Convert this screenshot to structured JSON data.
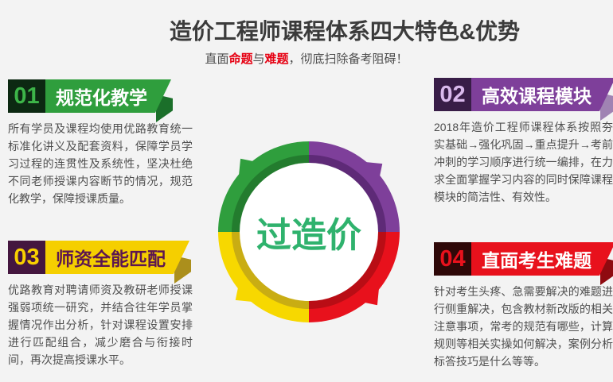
{
  "page": {
    "background": "#f3f3f3"
  },
  "header": {
    "title": "造价工程师课程体系四大特色&优势",
    "title_color": "#3b3b3b",
    "emphasis_color": "#e60012",
    "subtitle_parts": [
      {
        "text": "直面",
        "emphasis": false
      },
      {
        "text": "命题",
        "emphasis": true
      },
      {
        "text": "与",
        "emphasis": false
      },
      {
        "text": "难题",
        "emphasis": true
      },
      {
        "text": "，彻底扫除备考阻碍！",
        "emphasis": false
      }
    ]
  },
  "features": [
    {
      "number": "01",
      "title": "规范化教学",
      "body": "所有学员及课程均使用优路教育统一标准化讲义及配套资料，保障学员学习过程的连贯性及系统性，坚决杜绝不同老师授课内容断节的情况，规范化教学，保障授课质量。",
      "colors": {
        "number_bg": "#0c2912",
        "number_text": "#3db549",
        "banner_bg": "#2f9e3d",
        "banner_text": "#ffffff",
        "fold": "#1b6f2a"
      }
    },
    {
      "number": "02",
      "title": "高效课程模块",
      "body": "2018年造价工程师课程体系按照夯实基础→强化巩固→重点提升→考前冲刺的学习顺序进行统一编排，在力求全面掌握学习内容的同时保障课程模块的简洁性、有效性。",
      "colors": {
        "number_bg": "#381d47",
        "number_text": "#d9b9ec",
        "banner_bg": "#7e3f9a",
        "banner_text": "#ffffff",
        "fold": "#a083b3"
      }
    },
    {
      "number": "03",
      "title": "师资全能匹配",
      "body": "优路教育对聘请师资及教研老师授课强弱项统一研究，并结合往年学员掌握情况作出分析，针对课程设置安排进行匹配组合，减少磨合与衔接时间，再次提高授课水平。",
      "colors": {
        "number_bg": "#44163f",
        "number_text": "#f8d000",
        "banner_bg": "#f5cf00",
        "banner_text": "#5c1650",
        "fold": "#ab8f1c"
      }
    },
    {
      "number": "04",
      "title": "直面考生难题",
      "body": "针对考生头疼、急需要解决的难题进行侧重解决，包含教材新改版的相关注意事项，常考的规范有哪些，计算规则等相关实操如何解决，案例分析标答技巧是什么等等。",
      "colors": {
        "number_bg": "#2e0808",
        "number_text": "#e8111c",
        "banner_bg": "#e8111c",
        "banner_text": "#ffffff",
        "fold": "#8f0a10"
      }
    }
  ],
  "ring": {
    "center_label": "过造价",
    "center_label_color": "#2fb26d",
    "segments": [
      {
        "position": "top-left",
        "color": "#2f9e3d",
        "inner_shade": "#237c2e"
      },
      {
        "position": "top-right",
        "color": "#7e3f9a",
        "inner_shade": "#5e2a77"
      },
      {
        "position": "bottom-left",
        "color": "#f7d800",
        "inner_shade": "#c9ad13"
      },
      {
        "position": "bottom-right",
        "color": "#e8111c",
        "inner_shade": "#b90d15"
      }
    ]
  }
}
